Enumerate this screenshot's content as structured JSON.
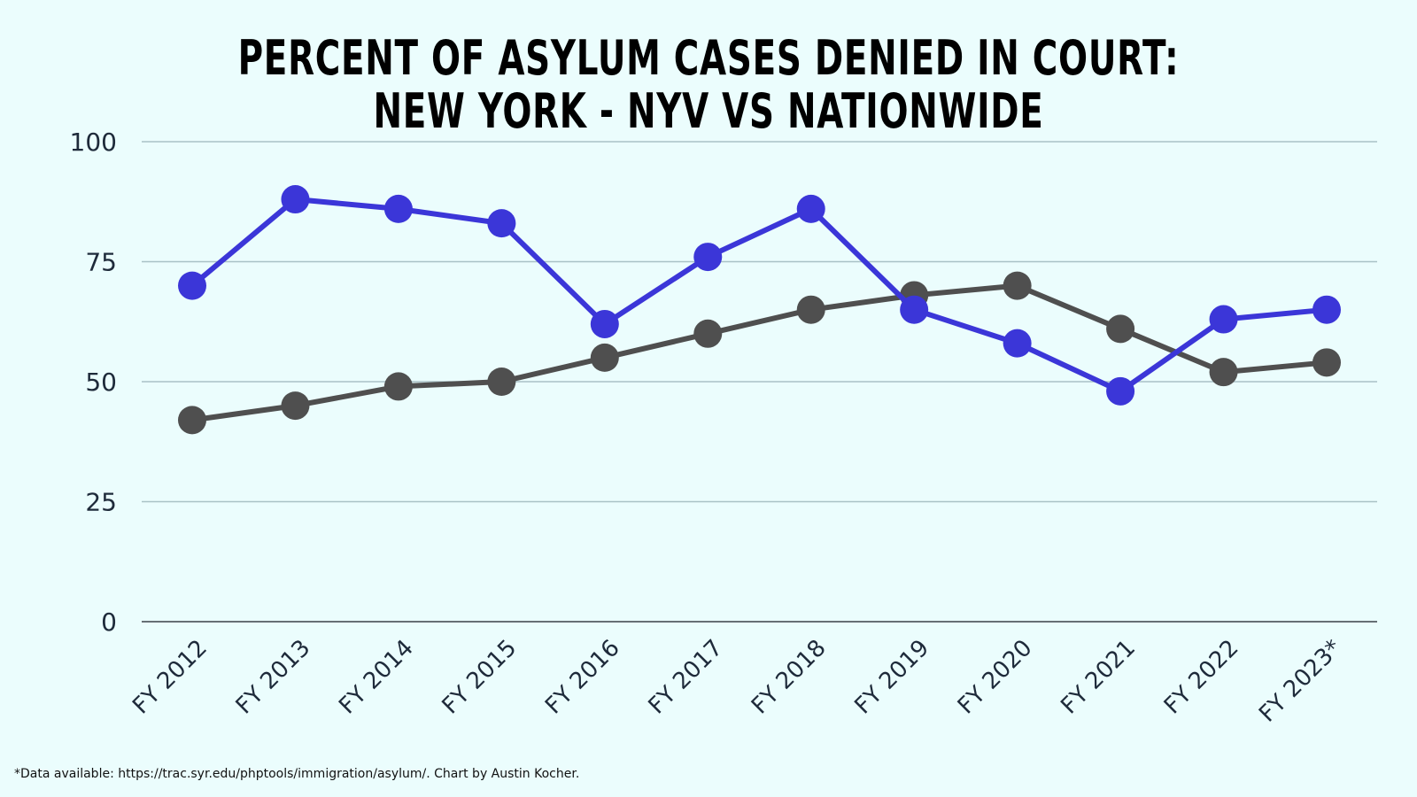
{
  "chart_data": {
    "type": "line",
    "title": [
      "PERCENT OF ASYLUM CASES DENIED IN COURT:",
      "NEW YORK - NYV VS NATIONWIDE"
    ],
    "categories": [
      "FY 2012",
      "FY 2013",
      "FY 2014",
      "FY 2015",
      "FY 2016",
      "FY 2017",
      "FY 2018",
      "FY 2019",
      "FY 2020",
      "FY 2021",
      "FY 2022",
      "FY 2023*"
    ],
    "yticks": [
      "0",
      "25",
      "50",
      "75",
      "100"
    ],
    "ylim": [
      0,
      100
    ],
    "grid": true,
    "series": [
      {
        "color": "#3b36d8",
        "values": [
          70,
          88,
          86,
          83,
          62,
          76,
          86,
          65,
          58,
          48,
          63,
          65
        ]
      },
      {
        "color": "#4f4f4f",
        "values": [
          42,
          45,
          49,
          50,
          55,
          60,
          65,
          68,
          70,
          61,
          52,
          54
        ]
      }
    ]
  },
  "footnote": "*Data available: https://trac.syr.edu/phptools/immigration/asylum/. Chart by Austin Kocher."
}
